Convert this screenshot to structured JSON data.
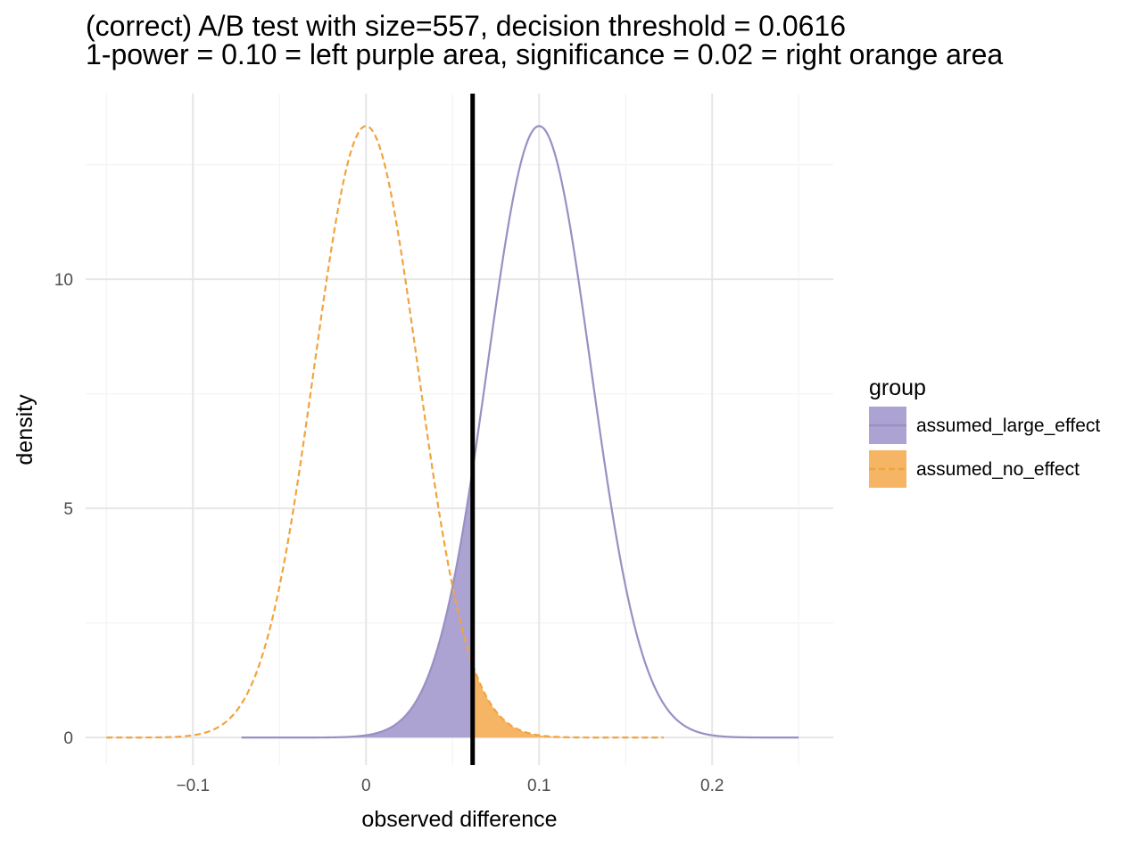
{
  "chart_data": {
    "type": "area",
    "title": "(correct) A/B test with size=557, decision threshold = 0.0616",
    "subtitle": "1-power = 0.10 = left purple area, significance = 0.02 = right orange area",
    "xlabel": "observed difference",
    "ylabel": "density",
    "xlim": [
      -0.162,
      0.27
    ],
    "ylim": [
      -0.6,
      14.05
    ],
    "x_ticks": [
      -0.1,
      0,
      0.1,
      0.2
    ],
    "x_tick_labels": [
      "−0.1",
      "0",
      "0.1",
      "0.2"
    ],
    "y_ticks": [
      0,
      5,
      10
    ],
    "y_tick_labels": [
      "0",
      "5",
      "10"
    ],
    "grid": true,
    "threshold": 0.0616,
    "series": [
      {
        "name": "assumed_large_effect",
        "distribution": "normal",
        "mean": 0.1,
        "sd": 0.0299,
        "x_range": [
          -0.072,
          0.25
        ],
        "color": "#9a8fc3",
        "fill_color": "#aca3d2",
        "line_style": "solid",
        "shaded_region": "left of threshold"
      },
      {
        "name": "assumed_no_effect",
        "distribution": "normal",
        "mean": 0.0,
        "sd": 0.0299,
        "x_range": [
          -0.15,
          0.172
        ],
        "color": "#f0a43f",
        "fill_color": "#f5b565",
        "line_style": "dashed",
        "shaded_region": "right of threshold"
      }
    ],
    "legend": {
      "title": "group",
      "placement": "right",
      "entries": [
        "assumed_large_effect",
        "assumed_no_effect"
      ]
    }
  }
}
